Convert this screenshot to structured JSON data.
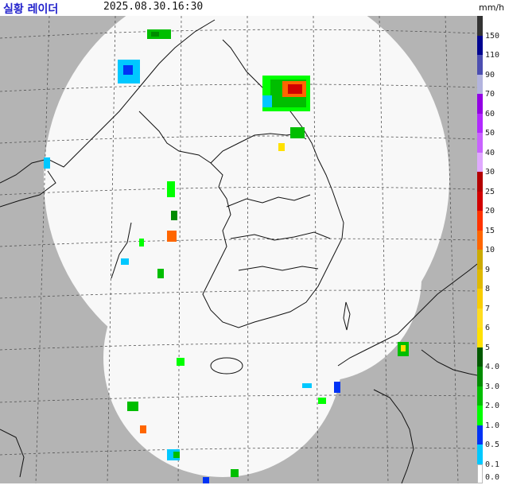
{
  "header": {
    "title": "실황 레이더",
    "timestamp": "2025.08.30.16:30",
    "unit": "mm/h"
  },
  "colors": {
    "background_outside": "#b4b4b4",
    "coverage": "#f8f8f8",
    "grid": "#555555",
    "coast": "#111111"
  },
  "legend": [
    {
      "label": "150",
      "color": "#333333"
    },
    {
      "label": "110",
      "color": "#000390"
    },
    {
      "label": "90",
      "color": "#4c4eb1"
    },
    {
      "label": "70",
      "color": "#b3b4de"
    },
    {
      "label": "60",
      "color": "#9300e4"
    },
    {
      "label": "50",
      "color": "#b229ff"
    },
    {
      "label": "40",
      "color": "#c963ff"
    },
    {
      "label": "30",
      "color": "#e0a9ff"
    },
    {
      "label": "25",
      "color": "#b40000"
    },
    {
      "label": "20",
      "color": "#d20000"
    },
    {
      "label": "15",
      "color": "#ff3300"
    },
    {
      "label": "10",
      "color": "#ff6600"
    },
    {
      "label": "9",
      "color": "#ccaa00"
    },
    {
      "label": "8",
      "color": "#e0b900"
    },
    {
      "label": "7",
      "color": "#f9cd00"
    },
    {
      "label": "6",
      "color": "#ffdc1f"
    },
    {
      "label": "5",
      "color": "#ffe100"
    },
    {
      "label": "4.0",
      "color": "#005a00"
    },
    {
      "label": "3.0",
      "color": "#008c00"
    },
    {
      "label": "2.0",
      "color": "#00be00"
    },
    {
      "label": "1.0",
      "color": "#00ff00"
    },
    {
      "label": "0.5",
      "color": "#0033f5"
    },
    {
      "label": "0.1",
      "color": "#00c8ff"
    },
    {
      "label": "0.0",
      "color": "#ffffff"
    }
  ]
}
